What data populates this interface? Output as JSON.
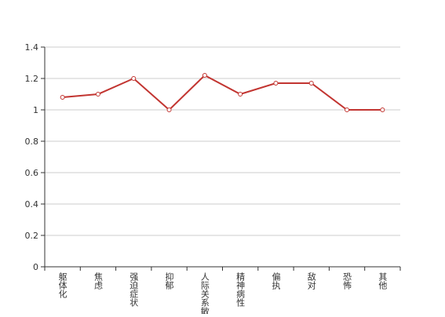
{
  "chart_data": {
    "type": "line",
    "categories": [
      "躯体化",
      "焦虑",
      "强迫症状",
      "抑郁",
      "人际关系敏感",
      "精神病性",
      "偏执",
      "敌对",
      "恐怖",
      "其他"
    ],
    "series": [
      {
        "color": "#c23531",
        "values": [
          1.08,
          1.1,
          1.2,
          1.0,
          1.22,
          1.1,
          1.17,
          1.17,
          1.0,
          1.0
        ]
      }
    ],
    "ylim": [
      0,
      1.4
    ],
    "yticks": [
      0,
      0.2,
      0.4,
      0.6,
      0.8,
      1,
      1.2,
      1.4
    ],
    "grid": true
  }
}
